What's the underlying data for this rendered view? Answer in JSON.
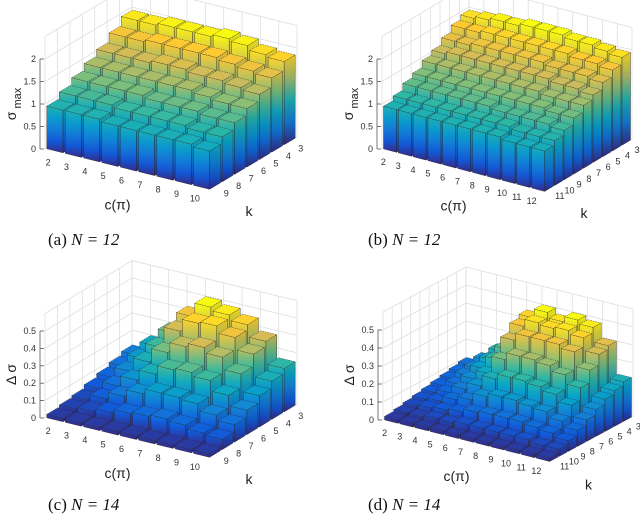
{
  "colormap": [
    "#352a87",
    "#0f5cdd",
    "#1481d6",
    "#06a4ca",
    "#2eb7a4",
    "#87bf77",
    "#d1bb59",
    "#fec832",
    "#f9fb0e"
  ],
  "chart_data": [
    {
      "type": "bar3d",
      "caption": "(a)",
      "caption_eq": "N = 12",
      "xlabel": "c(π)",
      "ylabel": "k",
      "zlabel": "σ",
      "zlabel_sub": "max",
      "x": [
        2,
        3,
        4,
        5,
        6,
        7,
        8,
        9,
        10
      ],
      "y": [
        3,
        4,
        5,
        6,
        7,
        8,
        9
      ],
      "zticks": [
        "0",
        "0.5",
        "1",
        "1.5",
        "2"
      ],
      "ztick_values": [
        0,
        0.5,
        1,
        1.5,
        2
      ],
      "zlim": [
        0,
        2.5
      ],
      "grid": true,
      "values": [
        [
          1.95,
          1.95,
          2.0,
          2.0,
          2.0,
          2.05,
          2.0,
          1.9,
          1.85
        ],
        [
          1.75,
          1.75,
          1.8,
          1.8,
          1.8,
          1.8,
          1.75,
          1.7,
          1.65
        ],
        [
          1.55,
          1.55,
          1.55,
          1.6,
          1.6,
          1.55,
          1.55,
          1.5,
          1.45
        ],
        [
          1.4,
          1.4,
          1.4,
          1.4,
          1.4,
          1.4,
          1.35,
          1.3,
          1.3
        ],
        [
          1.25,
          1.25,
          1.25,
          1.25,
          1.2,
          1.2,
          1.2,
          1.15,
          1.15
        ],
        [
          1.1,
          1.1,
          1.1,
          1.05,
          1.05,
          1.05,
          1.05,
          1.0,
          1.0
        ],
        [
          0.95,
          0.95,
          0.95,
          0.9,
          0.9,
          0.9,
          0.9,
          0.9,
          0.85
        ]
      ]
    },
    {
      "type": "bar3d",
      "caption": "(b)",
      "caption_eq": "N = 12",
      "xlabel": "c(π)",
      "ylabel": "k",
      "zlabel": "σ",
      "zlabel_sub": "max",
      "x": [
        2,
        3,
        4,
        5,
        6,
        7,
        8,
        9,
        10,
        11,
        12
      ],
      "y": [
        3,
        4,
        5,
        6,
        7,
        8,
        9,
        10,
        11
      ],
      "zticks": [
        "0",
        "0.5",
        "1",
        "1.5",
        "2"
      ],
      "ztick_values": [
        0,
        0.5,
        1,
        1.5,
        2
      ],
      "zlim": [
        0,
        2.5
      ],
      "grid": true,
      "values": [
        [
          1.95,
          2.0,
          2.05,
          2.05,
          2.1,
          2.1,
          2.1,
          2.05,
          2.05,
          2.0,
          1.95
        ],
        [
          1.85,
          1.85,
          1.9,
          1.9,
          1.9,
          1.9,
          1.9,
          1.9,
          1.85,
          1.85,
          1.8
        ],
        [
          1.7,
          1.7,
          1.75,
          1.75,
          1.75,
          1.75,
          1.75,
          1.7,
          1.7,
          1.7,
          1.65
        ],
        [
          1.55,
          1.6,
          1.6,
          1.6,
          1.6,
          1.6,
          1.6,
          1.6,
          1.55,
          1.55,
          1.5
        ],
        [
          1.45,
          1.45,
          1.45,
          1.45,
          1.45,
          1.45,
          1.45,
          1.45,
          1.4,
          1.4,
          1.4
        ],
        [
          1.3,
          1.3,
          1.3,
          1.3,
          1.3,
          1.3,
          1.3,
          1.3,
          1.3,
          1.25,
          1.25
        ],
        [
          1.2,
          1.2,
          1.2,
          1.2,
          1.2,
          1.2,
          1.15,
          1.15,
          1.15,
          1.15,
          1.1
        ],
        [
          1.05,
          1.05,
          1.05,
          1.05,
          1.05,
          1.05,
          1.05,
          1.05,
          1.0,
          1.0,
          1.0
        ],
        [
          0.95,
          0.95,
          0.95,
          0.95,
          0.95,
          0.95,
          0.95,
          0.95,
          0.9,
          0.9,
          0.9
        ]
      ]
    },
    {
      "type": "bar3d",
      "caption": "(c)",
      "caption_eq": "N = 14",
      "xlabel": "c(π)",
      "ylabel": "k",
      "zlabel": "Δ σ",
      "zlabel_sub": "",
      "x": [
        2,
        3,
        4,
        5,
        6,
        7,
        8,
        9,
        10
      ],
      "y": [
        3,
        4,
        5,
        6,
        7,
        8,
        9
      ],
      "zticks": [
        "0",
        "0.1",
        "0.2",
        "0.3",
        "0.4",
        "0.5"
      ],
      "ztick_values": [
        0,
        0.1,
        0.2,
        0.3,
        0.4,
        0.5
      ],
      "zlim": [
        0,
        0.6
      ],
      "grid": true,
      "values": [
        [
          0.12,
          0.2,
          0.3,
          0.42,
          0.5,
          0.48,
          0.45,
          0.38,
          0.25
        ],
        [
          0.1,
          0.17,
          0.26,
          0.38,
          0.45,
          0.46,
          0.42,
          0.35,
          0.22
        ],
        [
          0.08,
          0.14,
          0.22,
          0.3,
          0.36,
          0.38,
          0.35,
          0.28,
          0.18
        ],
        [
          0.06,
          0.1,
          0.16,
          0.22,
          0.27,
          0.28,
          0.26,
          0.2,
          0.14
        ],
        [
          0.04,
          0.07,
          0.11,
          0.15,
          0.18,
          0.18,
          0.17,
          0.13,
          0.1
        ],
        [
          0.03,
          0.04,
          0.06,
          0.08,
          0.09,
          0.1,
          0.09,
          0.07,
          0.06
        ],
        [
          0.02,
          0.02,
          0.02,
          0.02,
          0.02,
          0.02,
          0.02,
          0.02,
          0.02
        ]
      ]
    },
    {
      "type": "bar3d",
      "caption": "(d)",
      "caption_eq": "N = 14",
      "xlabel": "c(π)",
      "ylabel": "k",
      "zlabel": "Δ σ",
      "zlabel_sub": "",
      "x": [
        2,
        3,
        4,
        5,
        6,
        7,
        8,
        9,
        10,
        11,
        12
      ],
      "y": [
        3,
        4,
        5,
        6,
        7,
        8,
        9,
        10,
        11
      ],
      "zticks": [
        "0",
        "0.1",
        "0.2",
        "0.3",
        "0.4",
        "0.5"
      ],
      "ztick_values": [
        0,
        0.1,
        0.2,
        0.3,
        0.4,
        0.5
      ],
      "zlim": [
        0,
        0.6
      ],
      "grid": true,
      "values": [
        [
          0.1,
          0.15,
          0.22,
          0.3,
          0.45,
          0.5,
          0.47,
          0.5,
          0.48,
          0.4,
          0.22
        ],
        [
          0.09,
          0.13,
          0.2,
          0.28,
          0.43,
          0.47,
          0.46,
          0.47,
          0.45,
          0.38,
          0.2
        ],
        [
          0.08,
          0.12,
          0.18,
          0.25,
          0.38,
          0.42,
          0.42,
          0.42,
          0.4,
          0.32,
          0.18
        ],
        [
          0.07,
          0.1,
          0.15,
          0.2,
          0.3,
          0.34,
          0.34,
          0.33,
          0.3,
          0.25,
          0.15
        ],
        [
          0.06,
          0.08,
          0.12,
          0.16,
          0.22,
          0.25,
          0.25,
          0.24,
          0.22,
          0.18,
          0.12
        ],
        [
          0.05,
          0.06,
          0.09,
          0.11,
          0.15,
          0.17,
          0.17,
          0.16,
          0.15,
          0.12,
          0.09
        ],
        [
          0.04,
          0.05,
          0.06,
          0.07,
          0.09,
          0.1,
          0.1,
          0.1,
          0.09,
          0.08,
          0.06
        ],
        [
          0.03,
          0.03,
          0.04,
          0.04,
          0.05,
          0.05,
          0.05,
          0.05,
          0.05,
          0.04,
          0.04
        ],
        [
          0.02,
          0.02,
          0.02,
          0.02,
          0.02,
          0.02,
          0.02,
          0.02,
          0.02,
          0.02,
          0.02
        ]
      ]
    }
  ]
}
